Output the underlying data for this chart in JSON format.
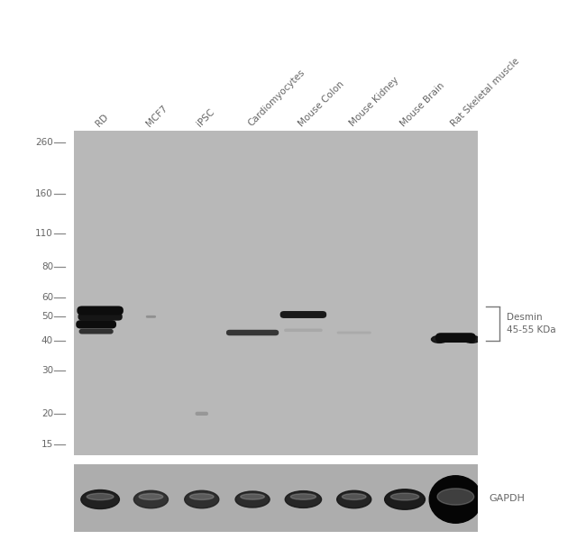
{
  "panel_bg": "#b8b8b8",
  "gapdh_bg": "#adadad",
  "white_bg": "#ffffff",
  "lane_labels": [
    "RD",
    "MCF7",
    "iPSC",
    "Cardiomyocytes",
    "Mouse Colon",
    "Mouse Kidney",
    "Mouse Brain",
    "Rat Skeletal muscle"
  ],
  "mw_markers": [
    260,
    160,
    110,
    80,
    60,
    50,
    40,
    30,
    20,
    15
  ],
  "annotation_label": "Desmin\n45-55 KDa",
  "gapdh_label": "GAPDH",
  "label_color": "#666666",
  "tick_color": "#888888",
  "band_black": "#0d0d0d",
  "band_dark": "#1a1a1a",
  "band_med": "#2d2d2d",
  "band_faint": "#707070",
  "band_very_faint": "#959595"
}
